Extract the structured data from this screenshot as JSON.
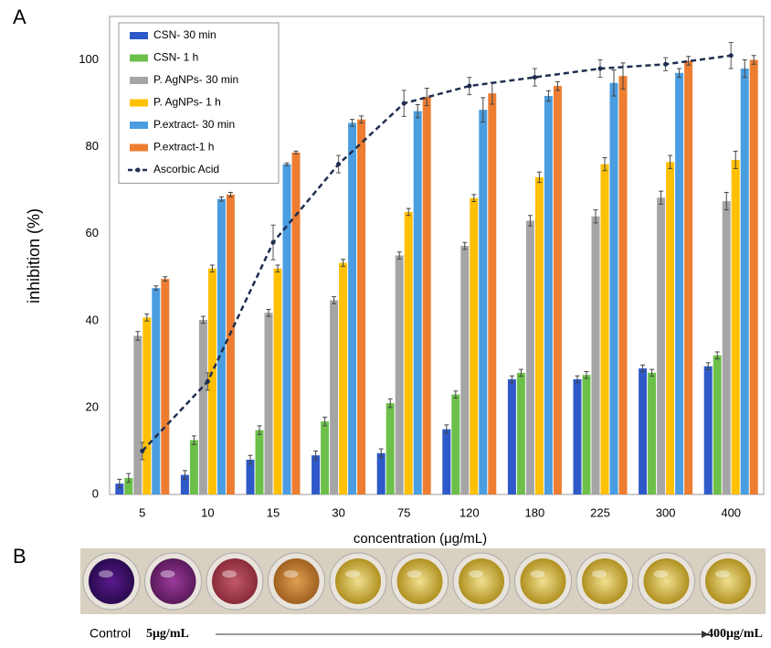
{
  "panel_labels": [
    "A",
    "B"
  ],
  "chart_data": {
    "type": "bar",
    "x_label": "concentration (μg/mL)",
    "y_label": "inhibition (%)",
    "categories": [
      "5",
      "10",
      "15",
      "30",
      "75",
      "120",
      "180",
      "225",
      "300",
      "400"
    ],
    "ylim": [
      0,
      110
    ],
    "yticks": [
      0,
      20,
      40,
      60,
      80,
      100
    ],
    "grid": false,
    "legend": "upper left",
    "series": [
      {
        "name": "CSN- 30 min",
        "color": "#2e59c8",
        "values": [
          2.5,
          4.5,
          8,
          9,
          9.5,
          15,
          26.5,
          26.5,
          29,
          29.5
        ],
        "errors": [
          1,
          1,
          1,
          1,
          1,
          1,
          0.8,
          0.8,
          0.8,
          0.8
        ]
      },
      {
        "name": "CSN- 1 h",
        "color": "#6cc04a",
        "values": [
          3.8,
          12.5,
          14.8,
          16.8,
          21,
          23,
          28,
          27.5,
          28,
          32
        ],
        "errors": [
          1,
          1,
          1,
          1,
          1,
          0.8,
          0.8,
          0.8,
          0.8,
          0.8
        ]
      },
      {
        "name": "P. AgNPs- 30 min",
        "color": "#a5a5a5",
        "values": [
          36.5,
          40.2,
          41.8,
          44.7,
          55,
          57.2,
          63,
          64,
          68.3,
          67.5
        ],
        "errors": [
          1,
          0.8,
          0.8,
          0.8,
          0.8,
          0.8,
          1.2,
          1.5,
          1.5,
          2
        ]
      },
      {
        "name": "P. AgNPs- 1 h",
        "color": "#ffc000",
        "values": [
          40.7,
          52,
          52,
          53.3,
          65,
          68.2,
          73,
          76,
          76.5,
          77
        ],
        "errors": [
          0.8,
          0.8,
          0.8,
          0.8,
          0.8,
          0.8,
          1.2,
          1.5,
          1.5,
          2
        ]
      },
      {
        "name": "P.extract- 30 min",
        "color": "#4a9de0",
        "values": [
          47.5,
          68,
          76,
          85.5,
          88.2,
          88.5,
          91.7,
          94.7,
          97,
          98
        ],
        "errors": [
          0.5,
          0.5,
          0.3,
          0.8,
          1.5,
          2.8,
          1.2,
          3,
          1,
          2
        ]
      },
      {
        "name": "P.extract-1 h",
        "color": "#ed7d31",
        "values": [
          49.6,
          69,
          78.7,
          86.3,
          91.5,
          92.3,
          94,
          96.3,
          99.8,
          100
        ],
        "errors": [
          0.5,
          0.5,
          0.3,
          0.8,
          2,
          2.5,
          1,
          3,
          1,
          1
        ]
      },
      {
        "name": "Ascorbic Acid",
        "color": "#1f2d4f",
        "type": "line",
        "values": [
          10,
          26,
          58,
          76,
          90,
          94,
          96,
          98,
          99,
          101
        ],
        "errors": [
          2,
          2,
          4,
          2,
          3,
          2,
          2,
          2,
          1.5,
          3
        ]
      }
    ]
  },
  "panel_b": {
    "start_label": "Control",
    "low_label": "5μg/mL",
    "high_label": "400μg/mL"
  }
}
